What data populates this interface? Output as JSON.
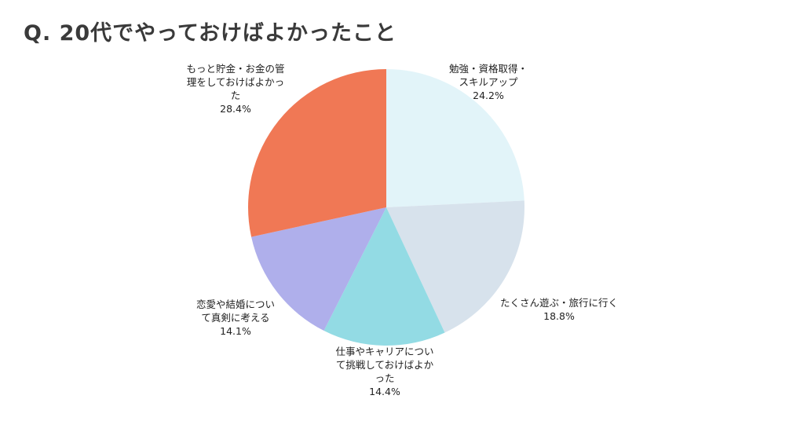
{
  "title": "Q. 20代でやっておけばよかったこと",
  "chart_data": {
    "type": "pie",
    "start_angle": "12 o'clock",
    "direction": "clockwise",
    "slices": [
      {
        "label_lines": [
          "勉強・資格取得・",
          "スキルアップ"
        ],
        "percent_label": "24.2%",
        "value": 24.2,
        "color": "#e2f4f9"
      },
      {
        "label_lines": [
          "たくさん遊ぶ・旅行に行く"
        ],
        "percent_label": "18.8%",
        "value": 18.8,
        "color": "#d7e2ec"
      },
      {
        "label_lines": [
          "仕事やキャリアについ",
          "て挑戦しておけばよか",
          "った"
        ],
        "percent_label": "14.4%",
        "value": 14.4,
        "color": "#93dbe4"
      },
      {
        "label_lines": [
          "恋愛や結婚につい",
          "て真剣に考える"
        ],
        "percent_label": "14.1%",
        "value": 14.1,
        "color": "#afafeb"
      },
      {
        "label_lines": [
          "もっと貯金・お金の管",
          "理をしておけばよかっ",
          "た"
        ],
        "percent_label": "28.4%",
        "value": 28.4,
        "color": "#f07855"
      }
    ]
  }
}
